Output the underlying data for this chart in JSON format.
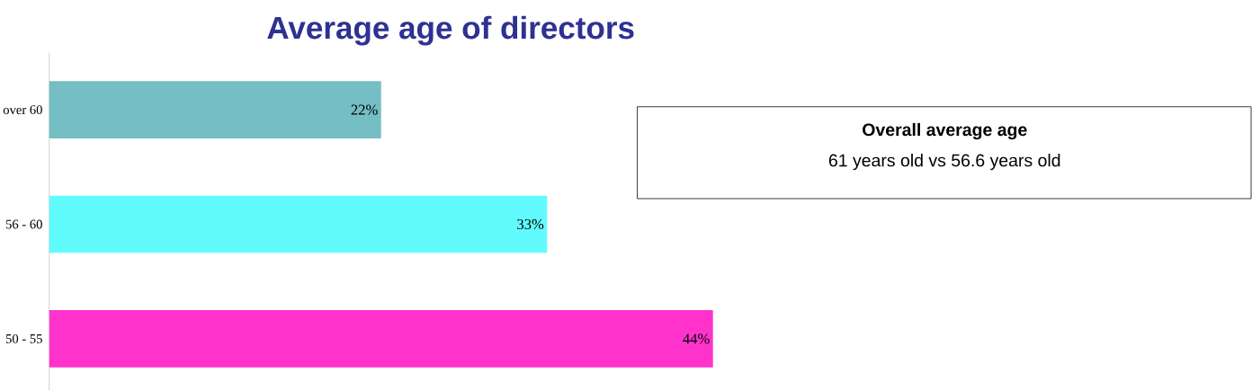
{
  "chart_data": {
    "type": "bar",
    "orientation": "horizontal",
    "title": "Average age of directors",
    "categories": [
      "over 60",
      "56 - 60",
      "50 - 55"
    ],
    "values": [
      22,
      33,
      44
    ],
    "colors": [
      "#74bec4",
      "#62fbfd",
      "#ff33cc"
    ],
    "value_labels": [
      "22%",
      "33%",
      "44%"
    ],
    "annotations": [
      "Overall average age",
      "61 years old vs 56.6 years old"
    ]
  }
}
